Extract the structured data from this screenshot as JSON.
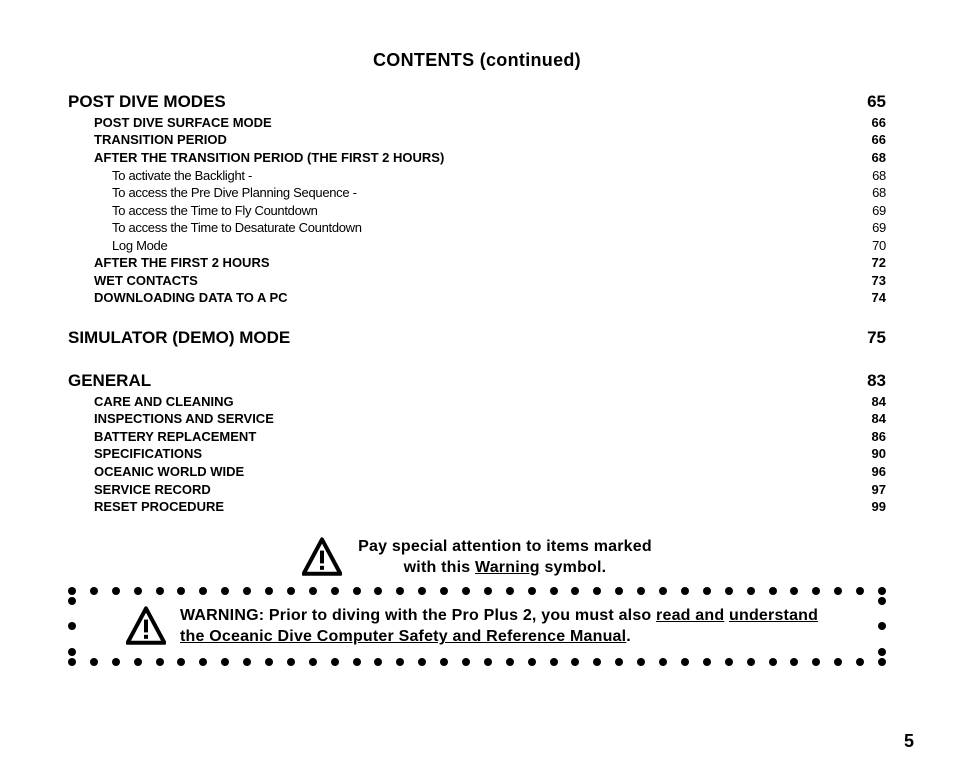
{
  "title": "CONTENTS (continued)",
  "pageNumber": "5",
  "sections": [
    {
      "heading": {
        "label": "POST DIVE MODES",
        "page": "65"
      },
      "items": [
        {
          "level": 1,
          "label": "POST DIVE SURFACE MODE",
          "page": "66"
        },
        {
          "level": 1,
          "label": "TRANSITION PERIOD",
          "page": "66"
        },
        {
          "level": 1,
          "label": "AFTER THE TRANSITION PERIOD (THE FIRST 2 HOURS)",
          "page": "68"
        },
        {
          "level": 2,
          "label": "To activate the Backlight -",
          "page": "68"
        },
        {
          "level": 2,
          "label": "To access the Pre Dive Planning Sequence -",
          "page": "68"
        },
        {
          "level": 2,
          "label": "To access the Time to Fly Countdown",
          "page": "69"
        },
        {
          "level": 2,
          "label": "To access the Time to Desaturate Countdown",
          "page": "69"
        },
        {
          "level": 2,
          "label": "Log Mode",
          "page": "70"
        },
        {
          "level": 1,
          "label": "AFTER THE FIRST 2 HOURS",
          "page": "72"
        },
        {
          "level": 1,
          "label": "WET CONTACTS",
          "page": "73"
        },
        {
          "level": 1,
          "label": "DOWNLOADING DATA TO A PC",
          "page": "74"
        }
      ]
    },
    {
      "heading": {
        "label": "SIMULATOR (DEMO) MODE",
        "page": "75"
      },
      "items": []
    },
    {
      "heading": {
        "label": "GENERAL",
        "page": "83"
      },
      "items": [
        {
          "level": 1,
          "label": "CARE AND CLEANING",
          "page": "84"
        },
        {
          "level": 1,
          "label": "INSPECTIONS AND SERVICE",
          "page": "84"
        },
        {
          "level": 1,
          "label": "BATTERY REPLACEMENT",
          "page": "86"
        },
        {
          "level": 1,
          "label": "SPECIFICATIONS",
          "page": "90"
        },
        {
          "level": 1,
          "label": "OCEANIC WORLD WIDE",
          "page": "96"
        },
        {
          "level": 1,
          "label": "SERVICE RECORD",
          "page": "97"
        },
        {
          "level": 1,
          "label": "RESET PROCEDURE",
          "page": "99"
        }
      ]
    }
  ],
  "attention": {
    "line1": "Pay special attention to items marked",
    "line2_pre": "with this ",
    "line2_underlined": "Warning",
    "line2_post": " symbol."
  },
  "warning": {
    "prefix": "WARNING:  Prior to diving with the Pro Plus 2, you must also ",
    "u1": "read and",
    "mid": " ",
    "u2": "understand the Oceanic Dive Computer Safety and Reference Manual",
    "suffix": "."
  },
  "style": {
    "dotCountH": 38,
    "dotCountV": 3,
    "iconSize1": 40,
    "iconSize2": 40
  }
}
